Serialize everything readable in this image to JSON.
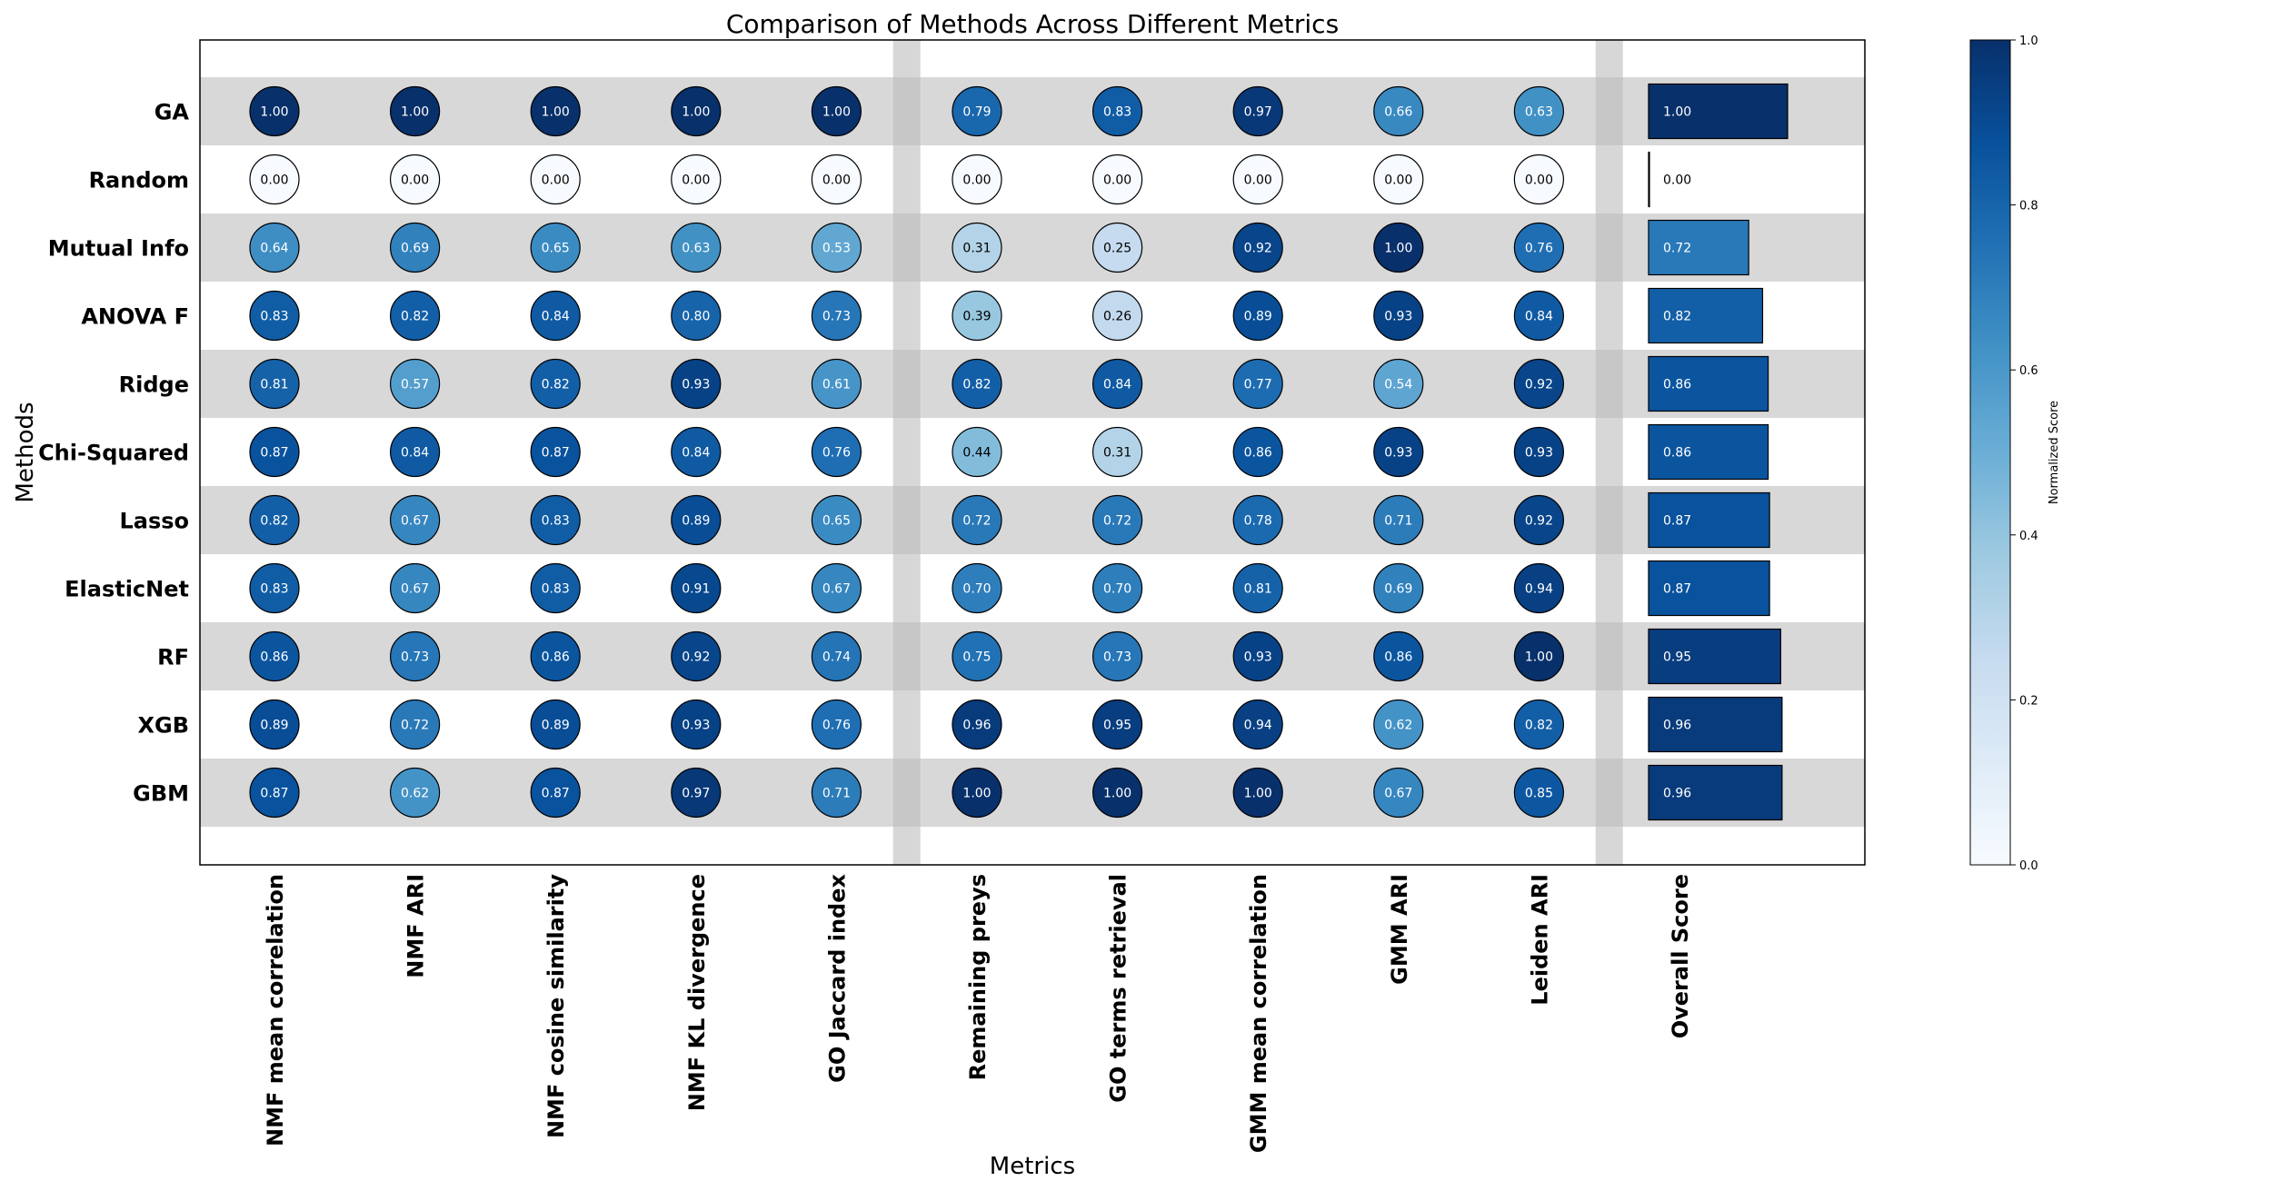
{
  "chart_data": {
    "type": "heatmap",
    "title": "Comparison of Methods Across Different Metrics",
    "xlabel": "Metrics",
    "ylabel": "Methods",
    "methods": [
      "GA",
      "Random",
      "Mutual Info",
      "ANOVA F",
      "Ridge",
      "Chi-Squared",
      "Lasso",
      "ElasticNet",
      "RF",
      "XGB",
      "GBM"
    ],
    "metrics": [
      "NMF mean correlation",
      "NMF ARI",
      "NMF cosine similarity",
      "NMF KL divergence",
      "GO Jaccard index",
      "Remaining preys",
      "GO terms retrieval",
      "GMM mean correlation",
      "GMM ARI",
      "Leiden ARI"
    ],
    "values": [
      [
        1.0,
        1.0,
        1.0,
        1.0,
        1.0,
        0.79,
        0.83,
        0.97,
        0.66,
        0.63
      ],
      [
        0.0,
        0.0,
        0.0,
        0.0,
        0.0,
        0.0,
        0.0,
        0.0,
        0.0,
        0.0
      ],
      [
        0.64,
        0.69,
        0.65,
        0.63,
        0.53,
        0.31,
        0.25,
        0.92,
        1.0,
        0.76
      ],
      [
        0.83,
        0.82,
        0.84,
        0.8,
        0.73,
        0.39,
        0.26,
        0.89,
        0.93,
        0.84
      ],
      [
        0.81,
        0.57,
        0.82,
        0.93,
        0.61,
        0.82,
        0.84,
        0.77,
        0.54,
        0.92
      ],
      [
        0.87,
        0.84,
        0.87,
        0.84,
        0.76,
        0.44,
        0.31,
        0.86,
        0.93,
        0.93
      ],
      [
        0.82,
        0.67,
        0.83,
        0.89,
        0.65,
        0.72,
        0.72,
        0.78,
        0.71,
        0.92
      ],
      [
        0.83,
        0.67,
        0.83,
        0.91,
        0.67,
        0.7,
        0.7,
        0.81,
        0.69,
        0.94
      ],
      [
        0.86,
        0.73,
        0.86,
        0.92,
        0.74,
        0.75,
        0.73,
        0.93,
        0.86,
        1.0
      ],
      [
        0.89,
        0.72,
        0.89,
        0.93,
        0.76,
        0.96,
        0.95,
        0.94,
        0.62,
        0.82
      ],
      [
        0.87,
        0.62,
        0.87,
        0.97,
        0.71,
        1.0,
        1.0,
        1.0,
        0.67,
        0.85
      ]
    ],
    "overall_label": "Overall Score",
    "overall_values": [
      1.0,
      0.0,
      0.72,
      0.82,
      0.86,
      0.86,
      0.87,
      0.87,
      0.95,
      0.96,
      0.96
    ],
    "separator_after_metric_index": [
      4
    ],
    "colorbar": {
      "label": "Normalized Score",
      "range": [
        0,
        1
      ],
      "ticks": [
        0.0,
        0.2,
        0.4,
        0.6,
        0.8,
        1.0
      ],
      "tick_labels": [
        "0.0",
        "0.2",
        "0.4",
        "0.6",
        "0.8",
        "1.0"
      ],
      "colormap": "Blues"
    },
    "grid": false,
    "colors": {
      "row_band": "#d8d8d8",
      "separator": "#bdbdbd"
    }
  }
}
